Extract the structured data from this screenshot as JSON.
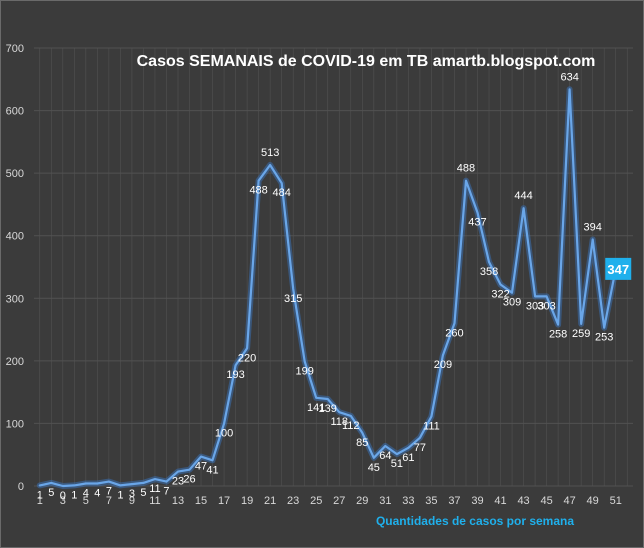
{
  "chart_data": {
    "type": "line",
    "title": "Casos SEMANAIS de COVID-19 em TB amartb.blogspot.com",
    "xlabel": "Quantidades de casos por semana",
    "ylabel": "",
    "ylim": [
      0,
      700
    ],
    "yticks": [
      0,
      100,
      200,
      300,
      400,
      500,
      600,
      700
    ],
    "xtick_labels": [
      "1",
      "3",
      "5",
      "7",
      "9",
      "11",
      "13",
      "15",
      "17",
      "19",
      "21",
      "23",
      "25",
      "27",
      "29",
      "31",
      "33",
      "35",
      "37",
      "39",
      "41",
      "43",
      "45",
      "47",
      "49",
      "51"
    ],
    "grid": true,
    "legend": "none",
    "series": [
      {
        "x": [
          1,
          2,
          3,
          4,
          5,
          6,
          7,
          8,
          9,
          10,
          11,
          12,
          13,
          14,
          15,
          16,
          17,
          18,
          19,
          20,
          21,
          22,
          23,
          24,
          25,
          26,
          27,
          28,
          29,
          30,
          31,
          32,
          33,
          34,
          35,
          36,
          37,
          38,
          39,
          40,
          41,
          42,
          43,
          44,
          45,
          46,
          47,
          48,
          49,
          50,
          51,
          52
        ],
        "values": [
          1,
          5,
          0,
          1,
          4,
          4,
          7,
          1,
          3,
          5,
          11,
          7,
          23,
          26,
          47,
          41,
          100,
          193,
          220,
          488,
          513,
          484,
          315,
          199,
          141,
          139,
          118,
          112,
          85,
          45,
          64,
          51,
          61,
          77,
          111,
          209,
          260,
          488,
          437,
          358,
          322,
          309,
          444,
          303,
          303,
          258,
          634,
          259,
          394,
          253,
          347,
          347
        ]
      }
    ],
    "data_labels": [
      {
        "x": 1,
        "y": 1,
        "text": "1",
        "pos": "below"
      },
      {
        "x": 2,
        "y": 5,
        "text": "5",
        "pos": "below"
      },
      {
        "x": 3,
        "y": 0,
        "text": "0",
        "pos": "below"
      },
      {
        "x": 4,
        "y": 1,
        "text": "1",
        "pos": "below"
      },
      {
        "x": 5,
        "y": 4,
        "text": "4",
        "pos": "below"
      },
      {
        "x": 6,
        "y": 4,
        "text": "4",
        "pos": "below"
      },
      {
        "x": 7,
        "y": 7,
        "text": "7",
        "pos": "below"
      },
      {
        "x": 8,
        "y": 1,
        "text": "1",
        "pos": "below"
      },
      {
        "x": 9,
        "y": 3,
        "text": "3",
        "pos": "below"
      },
      {
        "x": 10,
        "y": 5,
        "text": "5",
        "pos": "below"
      },
      {
        "x": 11,
        "y": 11,
        "text": "11",
        "pos": "below"
      },
      {
        "x": 12,
        "y": 7,
        "text": "7",
        "pos": "below"
      },
      {
        "x": 13,
        "y": 23,
        "text": "23",
        "pos": "below"
      },
      {
        "x": 14,
        "y": 26,
        "text": "26",
        "pos": "below"
      },
      {
        "x": 15,
        "y": 47,
        "text": "47",
        "pos": "below"
      },
      {
        "x": 16,
        "y": 41,
        "text": "41",
        "pos": "below"
      },
      {
        "x": 17,
        "y": 100,
        "text": "100",
        "pos": "below"
      },
      {
        "x": 18,
        "y": 193,
        "text": "193",
        "pos": "below"
      },
      {
        "x": 19,
        "y": 220,
        "text": "220",
        "pos": "below"
      },
      {
        "x": 20,
        "y": 488,
        "text": "488",
        "pos": "below"
      },
      {
        "x": 21,
        "y": 513,
        "text": "513",
        "pos": "above"
      },
      {
        "x": 22,
        "y": 484,
        "text": "484",
        "pos": "below"
      },
      {
        "x": 23,
        "y": 315,
        "text": "315",
        "pos": "below"
      },
      {
        "x": 24,
        "y": 199,
        "text": "199",
        "pos": "below"
      },
      {
        "x": 25,
        "y": 141,
        "text": "141",
        "pos": "below"
      },
      {
        "x": 26,
        "y": 139,
        "text": "139",
        "pos": "below"
      },
      {
        "x": 27,
        "y": 118,
        "text": "118",
        "pos": "below"
      },
      {
        "x": 28,
        "y": 112,
        "text": "112",
        "pos": "below"
      },
      {
        "x": 29,
        "y": 85,
        "text": "85",
        "pos": "below"
      },
      {
        "x": 30,
        "y": 45,
        "text": "45",
        "pos": "below"
      },
      {
        "x": 31,
        "y": 64,
        "text": "64",
        "pos": "below"
      },
      {
        "x": 32,
        "y": 51,
        "text": "51",
        "pos": "below"
      },
      {
        "x": 33,
        "y": 61,
        "text": "61",
        "pos": "below"
      },
      {
        "x": 34,
        "y": 77,
        "text": "77",
        "pos": "below"
      },
      {
        "x": 35,
        "y": 111,
        "text": "111",
        "pos": "below"
      },
      {
        "x": 36,
        "y": 209,
        "text": "209",
        "pos": "below"
      },
      {
        "x": 37,
        "y": 260,
        "text": "260",
        "pos": "below"
      },
      {
        "x": 38,
        "y": 488,
        "text": "488",
        "pos": "above"
      },
      {
        "x": 39,
        "y": 437,
        "text": "437",
        "pos": "below"
      },
      {
        "x": 40,
        "y": 358,
        "text": "358",
        "pos": "below"
      },
      {
        "x": 41,
        "y": 322,
        "text": "322",
        "pos": "below"
      },
      {
        "x": 42,
        "y": 309,
        "text": "309",
        "pos": "below"
      },
      {
        "x": 43,
        "y": 444,
        "text": "444",
        "pos": "above"
      },
      {
        "x": 44,
        "y": 303,
        "text": "303",
        "pos": "below"
      },
      {
        "x": 45,
        "y": 303,
        "text": "303",
        "pos": "below"
      },
      {
        "x": 46,
        "y": 258,
        "text": "258",
        "pos": "below"
      },
      {
        "x": 47,
        "y": 634,
        "text": "634",
        "pos": "above"
      },
      {
        "x": 48,
        "y": 259,
        "text": "259",
        "pos": "below"
      },
      {
        "x": 49,
        "y": 394,
        "text": "394",
        "pos": "above"
      },
      {
        "x": 50,
        "y": 253,
        "text": "253",
        "pos": "below"
      }
    ],
    "last_label": {
      "x": 52,
      "y": 347,
      "text": "347"
    },
    "colors": {
      "background": "#3b3b3b",
      "grid": "#525252",
      "line": "#6aa6e8",
      "line_glow": "#3b6fb0",
      "last_label_bg": "#1fb0ec",
      "xlabel": "#1fb0ec"
    }
  }
}
